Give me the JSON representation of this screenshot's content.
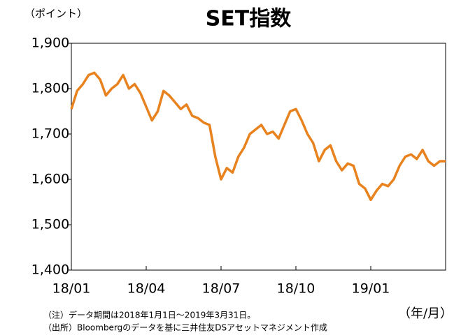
{
  "chart_data": {
    "type": "line",
    "title": "SET指数",
    "y_axis_label": "（ポイント）",
    "x_axis_label": "（年/月）",
    "notes": [
      "（注）データ期間は2018年1月1日～2019年3月31日。",
      "（出所）Bloombergのデータを基に三井住友DSアセットマネジメント作成"
    ],
    "categories": [
      "18/01",
      null,
      null,
      null,
      null,
      null,
      null,
      null,
      null,
      null,
      null,
      null,
      null,
      "18/04",
      null,
      null,
      null,
      null,
      null,
      null,
      null,
      null,
      null,
      null,
      null,
      null,
      "18/07",
      null,
      null,
      null,
      null,
      null,
      null,
      null,
      null,
      null,
      null,
      null,
      null,
      "18/10",
      null,
      null,
      null,
      null,
      null,
      null,
      null,
      null,
      null,
      null,
      null,
      null,
      "19/01",
      null,
      null,
      null,
      null,
      null,
      null,
      null,
      null,
      null,
      null,
      null,
      null,
      null
    ],
    "series": [
      {
        "name": "SET指数",
        "color": "#e8821e",
        "values": [
          1755,
          1795,
          1810,
          1830,
          1835,
          1820,
          1785,
          1800,
          1810,
          1830,
          1800,
          1810,
          1790,
          1760,
          1730,
          1750,
          1795,
          1785,
          1770,
          1755,
          1765,
          1740,
          1735,
          1725,
          1720,
          1650,
          1600,
          1625,
          1615,
          1650,
          1670,
          1700,
          1710,
          1720,
          1700,
          1705,
          1690,
          1720,
          1750,
          1755,
          1730,
          1700,
          1680,
          1640,
          1665,
          1675,
          1640,
          1620,
          1635,
          1630,
          1590,
          1580,
          1555,
          1575,
          1590,
          1585,
          1600,
          1630,
          1650,
          1655,
          1645,
          1665,
          1640,
          1630,
          1640,
          1640
        ]
      }
    ],
    "ylim": [
      1400,
      1900
    ],
    "yticks": [
      {
        "value": 1400,
        "label": "1,400"
      },
      {
        "value": 1500,
        "label": "1,500"
      },
      {
        "value": 1600,
        "label": "1,600"
      },
      {
        "value": 1700,
        "label": "1,700"
      },
      {
        "value": 1800,
        "label": "1,800"
      },
      {
        "value": 1900,
        "label": "1,900"
      }
    ],
    "grid": false
  }
}
